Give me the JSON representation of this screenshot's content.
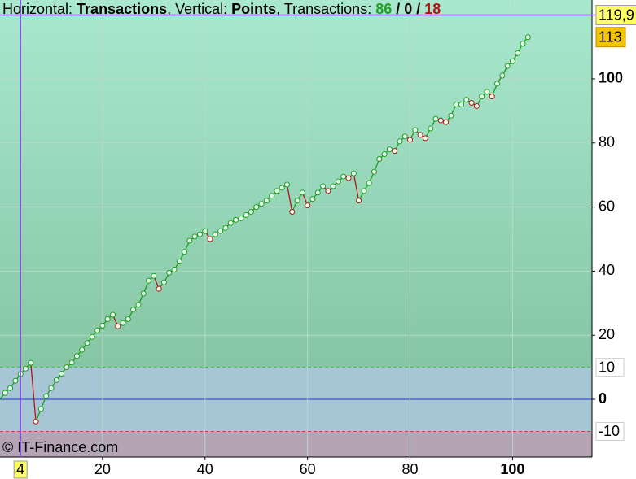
{
  "chart_data": {
    "type": "line",
    "title": [
      {
        "text": "Horizontal:"
      },
      {
        "text": "Transactions",
        "bold": true
      },
      {
        "text": ", Vertical:"
      },
      {
        "text": "Points",
        "bold": true
      },
      {
        "text": ", Transactions:"
      },
      {
        "value": 86,
        "color": "#22a022",
        "bold": true
      },
      {
        "text": "/",
        "bold": true
      },
      {
        "value": 0,
        "bold": true
      },
      {
        "text": "/",
        "bold": true
      },
      {
        "value": 18,
        "color": "#b01010",
        "bold": true
      }
    ],
    "watermark": "© IT-Finance.com",
    "x": [
      0,
      1,
      2,
      3,
      4,
      5,
      6,
      7,
      8,
      9,
      10,
      11,
      12,
      13,
      14,
      15,
      16,
      17,
      18,
      19,
      20,
      21,
      22,
      23,
      24,
      25,
      26,
      27,
      28,
      29,
      30,
      31,
      32,
      33,
      34,
      35,
      36,
      37,
      38,
      39,
      40,
      41,
      42,
      43,
      44,
      45,
      46,
      47,
      48,
      49,
      50,
      51,
      52,
      53,
      54,
      55,
      56,
      57,
      58,
      59,
      60,
      61,
      62,
      63,
      64,
      65,
      66,
      67,
      68,
      69,
      70,
      71,
      72,
      73,
      74,
      75,
      76,
      77,
      78,
      79,
      80,
      81,
      82,
      83,
      84,
      85,
      86,
      87,
      88,
      89,
      90,
      91,
      92,
      93,
      94,
      95,
      96,
      97,
      98,
      99,
      100,
      101,
      102,
      103
    ],
    "series": [
      {
        "name": "Points",
        "up_color": "#1e9e1e",
        "down_color": "#b01818",
        "values": [
          0,
          2,
          3.5,
          5.8,
          7.9,
          9.6,
          11.4,
          -6.9,
          -3,
          1,
          3.5,
          6,
          8,
          10,
          11.5,
          13.5,
          15.5,
          17.6,
          19.5,
          21.5,
          23,
          25,
          26.4,
          22.8,
          23.8,
          25,
          28,
          29.5,
          33,
          37,
          38.5,
          34.5,
          36.5,
          39.5,
          40.5,
          43,
          46,
          49.5,
          50.8,
          51.5,
          52.5,
          50,
          51.5,
          52.5,
          53.5,
          55,
          56,
          56.5,
          57.5,
          58.5,
          60,
          61,
          62,
          63.5,
          65,
          66,
          67,
          58.5,
          62,
          64.5,
          60.5,
          62.5,
          64.5,
          66.5,
          65,
          66.5,
          68,
          69.5,
          69,
          70.5,
          62,
          65,
          67.5,
          71,
          75,
          76.5,
          78,
          77.5,
          80.5,
          82,
          81,
          84,
          82.5,
          81.5,
          84.5,
          87.5,
          87,
          86.5,
          88.5,
          92,
          92,
          93.5,
          92.5,
          91.5,
          94.5,
          96,
          94.5,
          98.5,
          101,
          104,
          105.5,
          108,
          111,
          113
        ]
      }
    ],
    "xlim": [
      0,
      115.5
    ],
    "ylim": [
      -18,
      124.6
    ],
    "xticks": [
      20,
      40,
      60,
      80,
      100
    ],
    "yticks": [
      0,
      20,
      40,
      60,
      80,
      100
    ],
    "grid": true,
    "levels": [
      {
        "value": 10,
        "color": "#3cb83c"
      },
      {
        "value": -10,
        "color": "#d04040"
      }
    ],
    "crosshair": {
      "x": 4,
      "y": {
        "value": 119.9,
        "label": "119,9"
      },
      "color": "#8844ee"
    }
  }
}
